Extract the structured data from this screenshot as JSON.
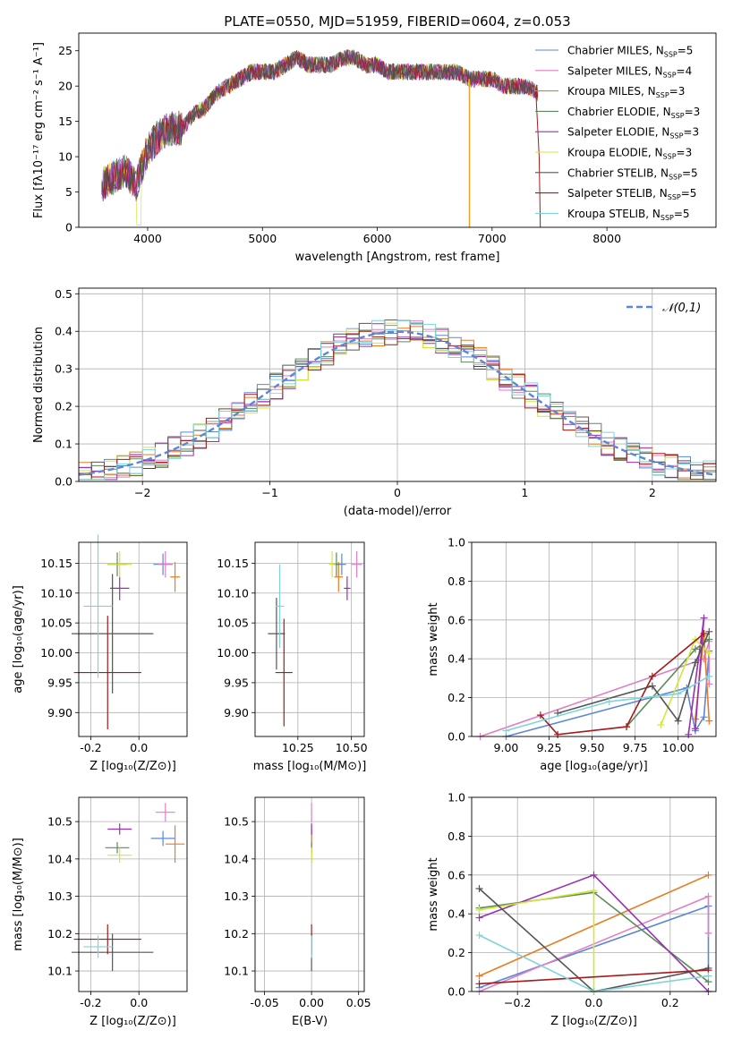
{
  "figure_title": "PLATE=0550, MJD=51959, FIBERID=0604, z=0.053",
  "chart_data": [
    {
      "id": "spectrum",
      "type": "line",
      "title": "PLATE=0550, MJD=51959, FIBERID=0604, z=0.053",
      "xlabel": "wavelength [Angstrom, rest frame]",
      "ylabel": "Flux [fλ10⁻¹⁷ erg cm⁻² s⁻¹ A⁻¹]",
      "xlim": [
        3400,
        8950
      ],
      "ylim": [
        0,
        27.5
      ],
      "xticks": [
        4000,
        5000,
        6000,
        7000,
        8000
      ],
      "yticks": [
        0,
        5,
        10,
        15,
        20,
        25
      ],
      "legend_position": "top-right",
      "data_envelope": {
        "x": [
          3600,
          3700,
          3800,
          3900,
          4000,
          4100,
          4200,
          4300,
          4400,
          4500,
          4600,
          4700,
          4800,
          4900,
          5000,
          5100,
          5200,
          5300,
          5400,
          5500,
          5600,
          5700,
          5800,
          5900,
          6000,
          6100,
          6200,
          6300,
          6400,
          6500,
          6600,
          6700,
          6800,
          6900,
          7000,
          7100,
          7200,
          7300,
          7400
        ],
        "y": [
          6,
          7,
          8,
          6,
          11,
          13,
          14,
          14,
          16,
          17,
          19,
          20,
          21,
          22,
          22,
          22,
          23,
          24,
          23,
          23,
          23,
          24,
          24,
          23,
          23,
          22,
          22,
          22,
          22,
          22,
          22,
          22,
          21,
          21,
          21,
          20,
          20,
          20,
          19
        ]
      },
      "series": [
        {
          "name": "Chabrier MILES, N_SSP=5",
          "color": "#5b87d6"
        },
        {
          "name": "Salpeter MILES, N_SSP=4",
          "color": "#e17fc2"
        },
        {
          "name": "Kroupa MILES, N_SSP=3",
          "color": "#e97b21"
        },
        {
          "name": "Chabrier ELODIE, N_SSP=3",
          "color": "#5b8a5b"
        },
        {
          "name": "Salpeter ELODIE, N_SSP=3",
          "color": "#9a2fb3"
        },
        {
          "name": "Kroupa ELODIE, N_SSP=3",
          "color": "#d4e63a"
        },
        {
          "name": "Chabrier STELIB, N_SSP=5",
          "color": "#555555"
        },
        {
          "name": "Salpeter STELIB, N_SSP=5",
          "color": "#a41c1c"
        },
        {
          "name": "Kroupa STELIB, N_SSP=5",
          "color": "#7fd4dc"
        }
      ]
    },
    {
      "id": "residuals",
      "type": "step",
      "xlabel": "(data-model)/error",
      "ylabel": "Normed distribution",
      "xlim": [
        -2.5,
        2.5
      ],
      "ylim": [
        0,
        0.515
      ],
      "xticks": [
        -2,
        -1,
        0,
        1,
        2
      ],
      "yticks": [
        0.0,
        0.1,
        0.2,
        0.3,
        0.4,
        0.5
      ],
      "grid": true,
      "legend_position": "top-right",
      "reference_curve": {
        "name": "𝒩(0,1)",
        "mu": 0,
        "sigma": 1,
        "color": "#5b87d6"
      },
      "bins": 50
    },
    {
      "id": "age_vs_Z",
      "type": "errorbar",
      "xlabel": "Z [log₁₀(Z/Z⊙)]",
      "ylabel": "age  [log₁₀(age/yr)]",
      "xlim": [
        -0.25,
        0.2
      ],
      "ylim": [
        9.86,
        10.185
      ],
      "xticks": [
        -0.2,
        0.0
      ],
      "yticks": [
        9.9,
        9.95,
        10.0,
        10.05,
        10.1,
        10.15
      ],
      "grid": true,
      "points": [
        {
          "series": "Chabrier MILES",
          "x": 0.1,
          "y": 10.148,
          "xerr": 0.04,
          "yerr": 0.018
        },
        {
          "series": "Salpeter MILES",
          "x": 0.11,
          "y": 10.148,
          "xerr": 0.03,
          "yerr": 0.022
        },
        {
          "series": "Kroupa MILES",
          "x": 0.15,
          "y": 10.127,
          "xerr": 0.02,
          "yerr": 0.025
        },
        {
          "series": "Chabrier ELODIE",
          "x": -0.09,
          "y": 10.148,
          "xerr": 0.04,
          "yerr": 0.02
        },
        {
          "series": "Salpeter ELODIE",
          "x": -0.08,
          "y": 10.108,
          "xerr": 0.04,
          "yerr": 0.02
        },
        {
          "series": "Kroupa ELODIE",
          "x": -0.08,
          "y": 10.148,
          "xerr": 0.05,
          "yerr": 0.022
        },
        {
          "series": "Chabrier STELIB",
          "x": -0.11,
          "y": 10.032,
          "xerr": 0.17,
          "yerr": 0.1
        },
        {
          "series": "Salpeter STELIB",
          "x": -0.13,
          "y": 9.967,
          "xerr": 0.14,
          "yerr": 0.095
        },
        {
          "series": "Kroupa STELIB",
          "x": -0.17,
          "y": 10.078,
          "xerr": 0.06,
          "yerr": 0.12
        }
      ]
    },
    {
      "id": "age_vs_mass",
      "type": "errorbar",
      "xlabel": "mass [log₁₀(M/M⊙)]",
      "ylabel": "",
      "xlim": [
        10.05,
        10.56
      ],
      "ylim": [
        9.86,
        10.185
      ],
      "xticks": [
        10.25,
        10.5
      ],
      "yticks": [
        9.9,
        9.95,
        10.0,
        10.05,
        10.1,
        10.15
      ],
      "grid": true,
      "points": [
        {
          "series": "Chabrier MILES",
          "x": 10.455,
          "y": 10.148,
          "xerr": 0.02,
          "yerr": 0.018
        },
        {
          "series": "Salpeter MILES",
          "x": 10.525,
          "y": 10.148,
          "xerr": 0.025,
          "yerr": 0.022
        },
        {
          "series": "Kroupa MILES",
          "x": 10.44,
          "y": 10.127,
          "xerr": 0.02,
          "yerr": 0.025
        },
        {
          "series": "Chabrier ELODIE",
          "x": 10.43,
          "y": 10.148,
          "xerr": 0.015,
          "yerr": 0.02
        },
        {
          "series": "Salpeter ELODIE",
          "x": 10.48,
          "y": 10.108,
          "xerr": 0.015,
          "yerr": 0.02
        },
        {
          "series": "Kroupa ELODIE",
          "x": 10.41,
          "y": 10.148,
          "xerr": 0.015,
          "yerr": 0.022
        },
        {
          "series": "Chabrier STELIB",
          "x": 10.15,
          "y": 10.032,
          "xerr": 0.04,
          "yerr": 0.06
        },
        {
          "series": "Salpeter STELIB",
          "x": 10.185,
          "y": 9.967,
          "xerr": 0.04,
          "yerr": 0.09
        },
        {
          "series": "Kroupa STELIB",
          "x": 10.165,
          "y": 10.078,
          "xerr": 0.02,
          "yerr": 0.07
        }
      ]
    },
    {
      "id": "weight_vs_age",
      "type": "line",
      "xlabel": "age  [log₁₀(age/yr)]",
      "ylabel": "mass weight",
      "xlim": [
        8.8,
        10.22
      ],
      "ylim": [
        0,
        1.0
      ],
      "xticks": [
        9.0,
        9.25,
        9.5,
        9.75,
        10.0
      ],
      "yticks": [
        0.0,
        0.2,
        0.4,
        0.6,
        0.8,
        1.0
      ],
      "grid": true,
      "series": [
        {
          "name": "Chabrier MILES",
          "x": [
            9.0,
            10.05,
            10.1,
            10.15,
            10.18
          ],
          "y": [
            0.0,
            0.25,
            0.03,
            0.1,
            0.44
          ]
        },
        {
          "name": "Salpeter MILES",
          "x": [
            8.85,
            10.15,
            10.18,
            10.18
          ],
          "y": [
            0.0,
            0.4,
            0.49,
            0.27
          ]
        },
        {
          "name": "Kroupa MILES",
          "x": [
            10.1,
            10.15,
            10.18
          ],
          "y": [
            0.09,
            0.52,
            0.08
          ]
        },
        {
          "name": "Chabrier ELODIE",
          "x": [
            9.7,
            10.1,
            10.18
          ],
          "y": [
            0.05,
            0.45,
            0.5
          ]
        },
        {
          "name": "Salpeter ELODIE",
          "x": [
            10.06,
            10.15,
            10.1
          ],
          "y": [
            0.01,
            0.61,
            0.04
          ]
        },
        {
          "name": "Kroupa ELODIE",
          "x": [
            9.9,
            10.1,
            10.18
          ],
          "y": [
            0.06,
            0.5,
            0.43
          ]
        },
        {
          "name": "Chabrier STELIB",
          "x": [
            9.3,
            9.85,
            10.0,
            10.1,
            10.18
          ],
          "y": [
            0.12,
            0.26,
            0.08,
            0.38,
            0.54
          ]
        },
        {
          "name": "Salpeter STELIB",
          "x": [
            9.2,
            9.3,
            9.7,
            9.85,
            10.15
          ],
          "y": [
            0.11,
            0.01,
            0.05,
            0.31,
            0.53
          ]
        },
        {
          "name": "Kroupa STELIB",
          "x": [
            9.0,
            9.6,
            10.0,
            10.18
          ],
          "y": [
            0.03,
            0.18,
            0.22,
            0.31
          ]
        }
      ]
    },
    {
      "id": "mass_vs_Z",
      "type": "errorbar",
      "xlabel": "Z [log₁₀(Z/Z⊙)]",
      "ylabel": "mass [log₁₀(M/M⊙)]",
      "xlim": [
        -0.25,
        0.2
      ],
      "ylim": [
        10.045,
        10.565
      ],
      "xticks": [
        -0.2,
        0.0
      ],
      "yticks": [
        10.1,
        10.2,
        10.3,
        10.4,
        10.5
      ],
      "grid": true,
      "points": [
        {
          "series": "Chabrier MILES",
          "x": 0.1,
          "y": 10.455,
          "xerr": 0.05,
          "yerr": 0.02
        },
        {
          "series": "Salpeter MILES",
          "x": 0.11,
          "y": 10.525,
          "xerr": 0.04,
          "yerr": 0.025
        },
        {
          "series": "Kroupa MILES",
          "x": 0.15,
          "y": 10.44,
          "xerr": 0.04,
          "yerr": 0.05
        },
        {
          "series": "Chabrier ELODIE",
          "x": -0.09,
          "y": 10.43,
          "xerr": 0.05,
          "yerr": 0.015
        },
        {
          "series": "Salpeter ELODIE",
          "x": -0.08,
          "y": 10.48,
          "xerr": 0.05,
          "yerr": 0.015
        },
        {
          "series": "Kroupa ELODIE",
          "x": -0.08,
          "y": 10.41,
          "xerr": 0.05,
          "yerr": 0.02
        },
        {
          "series": "Chabrier STELIB",
          "x": -0.11,
          "y": 10.15,
          "xerr": 0.17,
          "yerr": 0.05
        },
        {
          "series": "Salpeter STELIB",
          "x": -0.13,
          "y": 10.185,
          "xerr": 0.14,
          "yerr": 0.04
        },
        {
          "series": "Kroupa STELIB",
          "x": -0.17,
          "y": 10.165,
          "xerr": 0.06,
          "yerr": 0.03
        }
      ]
    },
    {
      "id": "mass_vs_ebv",
      "type": "errorbar",
      "xlabel": "E(B-V)",
      "ylabel": "",
      "xlim": [
        -0.06,
        0.056
      ],
      "ylim": [
        10.045,
        10.565
      ],
      "xticks": [
        -0.05,
        0.0,
        0.05
      ],
      "yticks": [
        10.1,
        10.2,
        10.3,
        10.4,
        10.5
      ],
      "grid": true,
      "points": [
        {
          "series": "Chabrier MILES",
          "x": 0.0,
          "y": 10.455,
          "xerr": 0,
          "yerr": 0.02
        },
        {
          "series": "Salpeter MILES",
          "x": 0.0,
          "y": 10.525,
          "xerr": 0,
          "yerr": 0.025
        },
        {
          "series": "Kroupa MILES",
          "x": 0.0,
          "y": 10.44,
          "xerr": 0,
          "yerr": 0.05
        },
        {
          "series": "Chabrier ELODIE",
          "x": 0.0,
          "y": 10.43,
          "xerr": 0,
          "yerr": 0.015
        },
        {
          "series": "Salpeter ELODIE",
          "x": 0.0,
          "y": 10.48,
          "xerr": 0,
          "yerr": 0.015
        },
        {
          "series": "Kroupa ELODIE",
          "x": 0.0,
          "y": 10.41,
          "xerr": 0,
          "yerr": 0.02
        },
        {
          "series": "Chabrier STELIB",
          "x": 0.0,
          "y": 10.15,
          "xerr": 0,
          "yerr": 0.05
        },
        {
          "series": "Salpeter STELIB",
          "x": 0.0,
          "y": 10.185,
          "xerr": 0,
          "yerr": 0.04
        },
        {
          "series": "Kroupa STELIB",
          "x": 0.0,
          "y": 10.165,
          "xerr": 0,
          "yerr": 0.03
        }
      ]
    },
    {
      "id": "weight_vs_Z",
      "type": "line",
      "xlabel": "Z [log₁₀(Z/Z⊙)]",
      "ylabel": "mass weight",
      "xlim": [
        -0.32,
        0.32
      ],
      "ylim": [
        0,
        1.0
      ],
      "xticks": [
        -0.2,
        0.0,
        0.2
      ],
      "yticks": [
        0.0,
        0.2,
        0.4,
        0.6,
        0.8,
        1.0
      ],
      "grid": true,
      "series": [
        {
          "name": "Chabrier MILES",
          "x": [
            -0.3,
            0.3,
            0.3
          ],
          "y": [
            0.02,
            0.44,
            0.12
          ]
        },
        {
          "name": "Salpeter MILES",
          "x": [
            -0.3,
            0.3,
            0.3
          ],
          "y": [
            0.0,
            0.49,
            0.3
          ]
        },
        {
          "name": "Kroupa MILES",
          "x": [
            -0.3,
            0.3
          ],
          "y": [
            0.08,
            0.6
          ]
        },
        {
          "name": "Chabrier ELODIE",
          "x": [
            -0.3,
            0.0,
            0.3
          ],
          "y": [
            0.43,
            0.51,
            0.05
          ]
        },
        {
          "name": "Salpeter ELODIE",
          "x": [
            -0.3,
            0.0,
            0.3
          ],
          "y": [
            0.38,
            0.6,
            0.0
          ]
        },
        {
          "name": "Kroupa ELODIE",
          "x": [
            -0.3,
            0.0,
            0.0
          ],
          "y": [
            0.42,
            0.52,
            0.0
          ]
        },
        {
          "name": "Chabrier STELIB",
          "x": [
            -0.3,
            0.0,
            0.3
          ],
          "y": [
            0.53,
            0.0,
            0.12
          ]
        },
        {
          "name": "Salpeter STELIB",
          "x": [
            -0.3,
            0.3
          ],
          "y": [
            0.04,
            0.11
          ]
        },
        {
          "name": "Kroupa STELIB",
          "x": [
            -0.3,
            0.0,
            0.3
          ],
          "y": [
            0.29,
            0.0,
            0.08
          ]
        }
      ]
    }
  ]
}
